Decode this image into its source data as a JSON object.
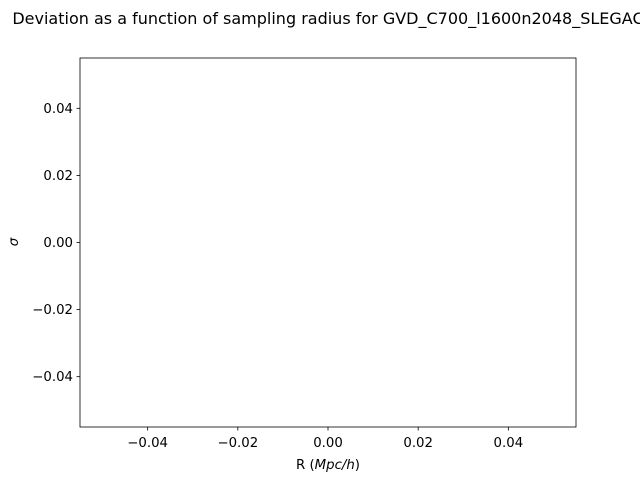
{
  "chart_data": {
    "type": "line",
    "title": "Deviation as a function of sampling radius for GVD_C700_l1600n2048_SLEGAC",
    "xlabel": {
      "prefix": "R (",
      "italic": "Mpc/h",
      "suffix": ")"
    },
    "ylabel": "σ",
    "xlim": [
      -0.055,
      0.055
    ],
    "ylim": [
      -0.055,
      0.055
    ],
    "xticks": [
      -0.04,
      -0.02,
      0.0,
      0.02,
      0.04
    ],
    "yticks": [
      -0.04,
      -0.02,
      0.0,
      0.02,
      0.04
    ],
    "xtick_labels": [
      "−0.04",
      "−0.02",
      "0.00",
      "0.02",
      "0.04"
    ],
    "ytick_labels": [
      "−0.04",
      "−0.02",
      "0.00",
      "0.02",
      "0.04"
    ],
    "series": [],
    "grid": false,
    "legend": "none"
  }
}
